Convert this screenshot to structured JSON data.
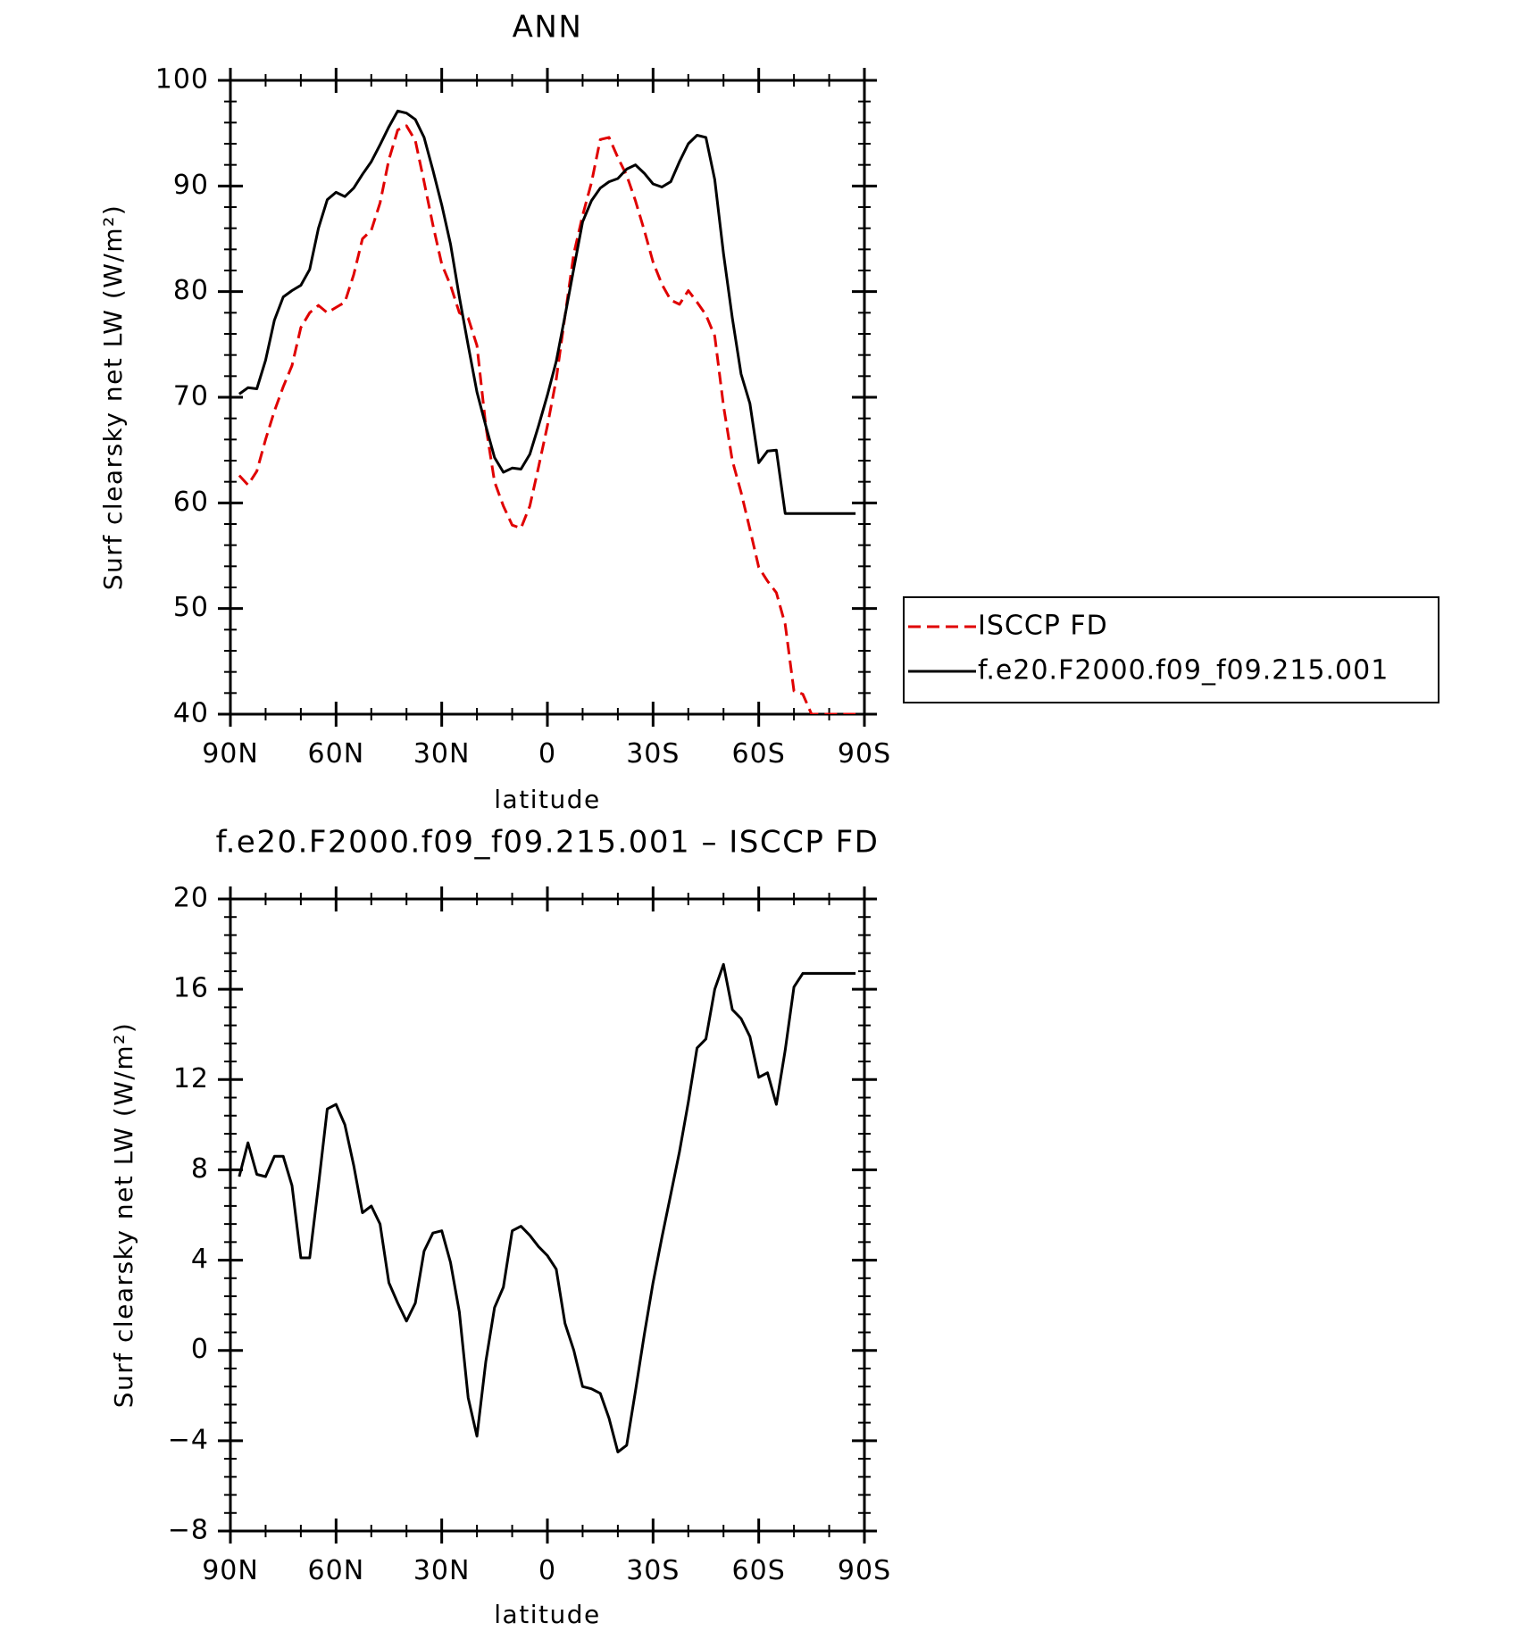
{
  "chart_data": [
    {
      "type": "line",
      "title": "ANN",
      "xlabel": "latitude",
      "ylabel": "Surf clearsky net LW (W/m²)",
      "xlim": [
        90,
        -90
      ],
      "ylim": [
        40,
        100
      ],
      "xticks": [
        {
          "value": 90,
          "label": "90N"
        },
        {
          "value": 60,
          "label": "60N"
        },
        {
          "value": 30,
          "label": "30N"
        },
        {
          "value": 0,
          "label": "0"
        },
        {
          "value": -30,
          "label": "30S"
        },
        {
          "value": -60,
          "label": "60S"
        },
        {
          "value": -90,
          "label": "90S"
        }
      ],
      "yticks": [
        100,
        90,
        80,
        70,
        60,
        50,
        40
      ],
      "legend": {
        "placement": "right",
        "entries": [
          "ISCCP FD",
          "f.e20.F2000.f09_f09.215.001"
        ]
      },
      "series": [
        {
          "name": "ISCCP FD",
          "color": "#e00000",
          "dash": "dashed",
          "x": [
            87.5,
            85,
            82.5,
            80,
            77.5,
            75,
            72.5,
            70,
            67.5,
            65,
            62.5,
            60,
            57.5,
            55,
            52.5,
            50,
            47.5,
            45,
            42.5,
            40,
            37.5,
            35,
            32.5,
            30,
            27.5,
            25,
            22.5,
            20,
            17.5,
            15,
            12.5,
            10,
            7.5,
            5,
            2.5,
            0,
            -2.5,
            -5,
            -7.5,
            -10,
            -12.5,
            -15,
            -17.5,
            -20,
            -22.5,
            -25,
            -27.5,
            -30,
            -32.5,
            -35,
            -37.5,
            -40,
            -42.5,
            -45,
            -47.5,
            -50,
            -52.5,
            -55,
            -57.5,
            -60,
            -62.5,
            -65,
            -67.5,
            -70,
            -72.5,
            -75,
            -77.5,
            -80,
            -82.5,
            -85,
            -87.5
          ],
          "y": [
            62.6,
            61.7,
            63.0,
            66.0,
            68.7,
            71.0,
            73.0,
            76.6,
            78.0,
            78.7,
            78.0,
            78.5,
            79.0,
            81.6,
            85.0,
            85.8,
            88.4,
            92.5,
            95.3,
            95.7,
            94.3,
            90.4,
            86.3,
            82.6,
            80.6,
            78.0,
            77.5,
            74.9,
            67.3,
            62.0,
            59.7,
            57.9,
            57.6,
            59.7,
            63.4,
            67.3,
            71.7,
            77.7,
            83.6,
            87.2,
            90.3,
            94.4,
            94.6,
            92.7,
            91.0,
            88.6,
            85.8,
            82.8,
            80.7,
            79.2,
            78.8,
            80.1,
            79.0,
            77.8,
            75.8,
            69.2,
            64.0,
            61.0,
            57.5,
            53.9,
            52.6,
            51.5,
            48.5,
            42.2,
            41.9,
            40.0,
            40.0,
            40.0,
            40.0,
            40.0,
            40.0
          ]
        },
        {
          "name": "f.e20.F2000.f09_f09.215.001",
          "color": "#000000",
          "dash": "solid",
          "x": [
            87.5,
            85,
            82.5,
            80,
            77.5,
            75,
            72.5,
            70,
            67.5,
            65,
            62.5,
            60,
            57.5,
            55,
            52.5,
            50,
            47.5,
            45,
            42.5,
            40,
            37.5,
            35,
            32.5,
            30,
            27.5,
            25,
            22.5,
            20,
            17.5,
            15,
            12.5,
            10,
            7.5,
            5,
            2.5,
            0,
            -2.5,
            -5,
            -7.5,
            -10,
            -12.5,
            -15,
            -17.5,
            -20,
            -22.5,
            -25,
            -27.5,
            -30,
            -32.5,
            -35,
            -37.5,
            -40,
            -42.5,
            -45,
            -47.5,
            -50,
            -52.5,
            -55,
            -57.5,
            -60,
            -62.5,
            -65,
            -67.5,
            -70,
            -72.5,
            -75,
            -77.5,
            -80,
            -82.5,
            -85,
            -87.5
          ],
          "y": [
            70.3,
            70.9,
            70.8,
            73.5,
            77.3,
            79.5,
            80.1,
            80.6,
            82.1,
            86.0,
            88.7,
            89.4,
            89.0,
            89.8,
            91.1,
            92.3,
            93.9,
            95.6,
            97.1,
            96.9,
            96.3,
            94.6,
            91.5,
            88.2,
            84.5,
            79.5,
            74.9,
            70.5,
            67.3,
            64.3,
            62.9,
            63.3,
            63.2,
            64.6,
            67.3,
            70.2,
            73.4,
            77.7,
            82.2,
            86.6,
            88.6,
            89.8,
            90.4,
            90.7,
            91.6,
            92.0,
            91.2,
            90.2,
            89.9,
            90.4,
            92.3,
            94.0,
            94.8,
            94.6,
            90.6,
            83.6,
            77.5,
            72.2,
            69.4,
            63.8,
            64.9,
            65.0,
            59.0,
            59.0,
            59.0,
            59.0,
            59.0,
            59.0,
            59.0,
            59.0,
            59.0
          ]
        }
      ]
    },
    {
      "type": "line",
      "title": "f.e20.F2000.f09_f09.215.001 – ISCCP FD",
      "xlabel": "latitude",
      "ylabel": "Surf clearsky net LW (W/m²)",
      "xlim": [
        90,
        -90
      ],
      "ylim": [
        -8,
        20
      ],
      "xticks": [
        {
          "value": 90,
          "label": "90N"
        },
        {
          "value": 60,
          "label": "60N"
        },
        {
          "value": 30,
          "label": "30N"
        },
        {
          "value": 0,
          "label": "0"
        },
        {
          "value": -30,
          "label": "30S"
        },
        {
          "value": -60,
          "label": "60S"
        },
        {
          "value": -90,
          "label": "90S"
        }
      ],
      "yticks": [
        20,
        16,
        12,
        8,
        4,
        0,
        -4,
        -8
      ],
      "series": [
        {
          "color": "#000000",
          "dash": "solid",
          "x": [
            87.5,
            85,
            82.5,
            80,
            77.5,
            75,
            72.5,
            70,
            67.5,
            65,
            62.5,
            60,
            57.5,
            55,
            52.5,
            50,
            47.5,
            45,
            42.5,
            40,
            37.5,
            35,
            32.5,
            30,
            27.5,
            25,
            22.5,
            20,
            17.5,
            15,
            12.5,
            10,
            7.5,
            5,
            2.5,
            0,
            -2.5,
            -5,
            -7.5,
            -10,
            -12.5,
            -15,
            -17.5,
            -20,
            -22.5,
            -25,
            -27.5,
            -30,
            -32.5,
            -35,
            -37.5,
            -40,
            -42.5,
            -45,
            -47.5,
            -50,
            -52.5,
            -55,
            -57.5,
            -60,
            -62.5,
            -65,
            -67.5,
            -70,
            -72.5,
            -75,
            -77.5,
            -80,
            -82.5,
            -85,
            -87.5
          ],
          "y": [
            7.7,
            9.2,
            7.8,
            7.7,
            8.6,
            8.6,
            7.3,
            4.1,
            4.1,
            7.3,
            10.7,
            10.9,
            10.0,
            8.2,
            6.1,
            6.4,
            5.6,
            3.0,
            2.1,
            1.3,
            2.1,
            4.4,
            5.2,
            5.3,
            3.9,
            1.7,
            -2.1,
            -3.8,
            -0.5,
            1.9,
            2.8,
            5.3,
            5.5,
            5.1,
            4.6,
            4.2,
            3.6,
            1.2,
            0.0,
            -1.6,
            -1.7,
            -1.9,
            -3.0,
            -4.5,
            -4.2,
            -1.8,
            0.7,
            3.0,
            5.0,
            6.9,
            8.8,
            11.0,
            13.4,
            13.8,
            16.0,
            17.1,
            15.1,
            14.7,
            13.9,
            12.1,
            12.3,
            10.9,
            13.3,
            16.1,
            16.7,
            16.7,
            16.7,
            16.7,
            16.7,
            16.7,
            16.7
          ]
        }
      ]
    }
  ]
}
